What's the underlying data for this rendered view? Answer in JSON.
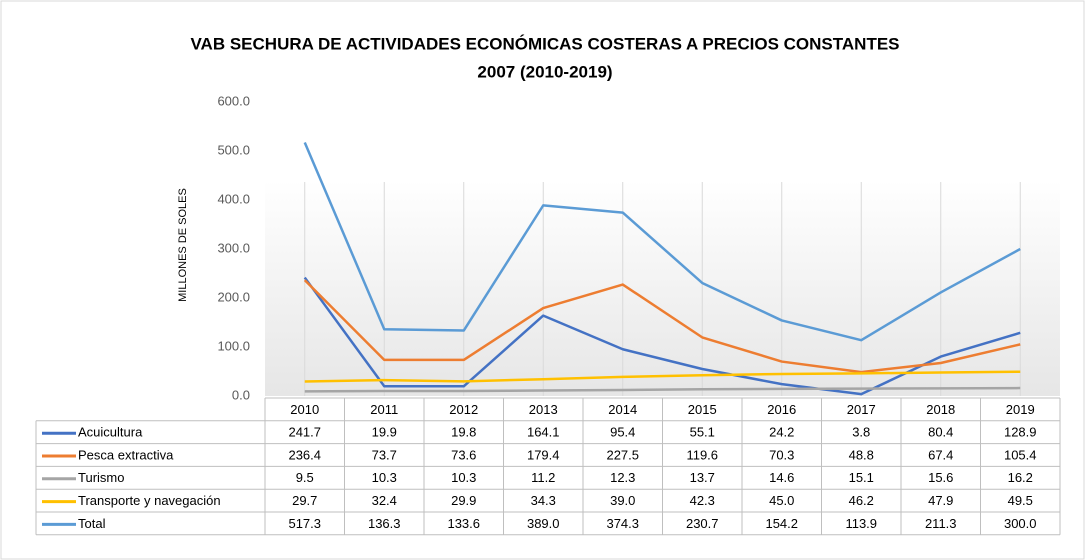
{
  "chart_data": {
    "type": "line",
    "title": "VAB SECHURA DE ACTIVIDADES ECONÓMICAS COSTERAS A PRECIOS CONSTANTES",
    "subtitle": "2007 (2010-2019)",
    "y_label": "MILLONES DE SOLES",
    "categories": [
      "2010",
      "2011",
      "2012",
      "2013",
      "2014",
      "2015",
      "2016",
      "2017",
      "2018",
      "2019"
    ],
    "ylim": [
      0,
      600
    ],
    "yticks": [
      {
        "value": 0,
        "label": "0.0"
      },
      {
        "value": 100,
        "label": "100.0"
      },
      {
        "value": 200,
        "label": "200.0"
      },
      {
        "value": 300,
        "label": "300.0"
      },
      {
        "value": 400,
        "label": "400.0"
      },
      {
        "value": 500,
        "label": "500.0"
      },
      {
        "value": 600,
        "label": "600.0"
      }
    ],
    "series": [
      {
        "name": "Acuicultura",
        "color": "#4472c4",
        "values": [
          241.7,
          19.9,
          19.8,
          164.1,
          95.4,
          55.1,
          24.2,
          3.8,
          80.4,
          128.9
        ],
        "value_labels": [
          "241.7",
          "19.9",
          "19.8",
          "164.1",
          "95.4",
          "55.1",
          "24.2",
          "3.8",
          "80.4",
          "128.9"
        ]
      },
      {
        "name": "Pesca extractiva",
        "color": "#ed7d31",
        "values": [
          236.4,
          73.7,
          73.6,
          179.4,
          227.5,
          119.6,
          70.3,
          48.8,
          67.4,
          105.4
        ],
        "value_labels": [
          "236.4",
          "73.7",
          "73.6",
          "179.4",
          "227.5",
          "119.6",
          "70.3",
          "48.8",
          "67.4",
          "105.4"
        ]
      },
      {
        "name": "Turismo",
        "color": "#a5a5a5",
        "values": [
          9.5,
          10.3,
          10.3,
          11.2,
          12.3,
          13.7,
          14.6,
          15.1,
          15.6,
          16.2
        ],
        "value_labels": [
          "9.5",
          "10.3",
          "10.3",
          "11.2",
          "12.3",
          "13.7",
          "14.6",
          "15.1",
          "15.6",
          "16.2"
        ]
      },
      {
        "name": "Transporte y navegación",
        "color": "#ffc000",
        "values": [
          29.7,
          32.4,
          29.9,
          34.3,
          39.0,
          42.3,
          45.0,
          46.2,
          47.9,
          49.5
        ],
        "value_labels": [
          "29.7",
          "32.4",
          "29.9",
          "34.3",
          "39.0",
          "42.3",
          "45.0",
          "46.2",
          "47.9",
          "49.5"
        ]
      },
      {
        "name": "Total",
        "color": "#5b9bd5",
        "values": [
          517.3,
          136.3,
          133.6,
          389.0,
          374.3,
          230.7,
          154.2,
          113.9,
          211.3,
          300.0
        ],
        "value_labels": [
          "517.3",
          "136.3",
          "133.6",
          "389.0",
          "374.3",
          "230.7",
          "154.2",
          "113.9",
          "211.3",
          "300.0"
        ]
      }
    ]
  }
}
